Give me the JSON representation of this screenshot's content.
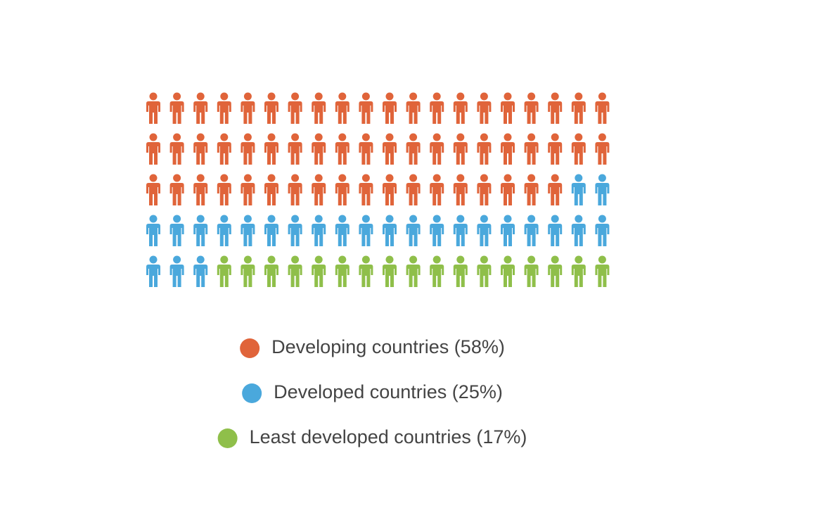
{
  "chart_data": {
    "type": "pictogram",
    "series": [
      {
        "name": "Developing countries (58%)",
        "value": 58,
        "color": "#e0643a"
      },
      {
        "name": "Developed countries (25%)",
        "value": 25,
        "color": "#4aa8dc"
      },
      {
        "name": "Least developed countries (17%)",
        "value": 17,
        "color": "#8fbf4a"
      }
    ]
  }
}
